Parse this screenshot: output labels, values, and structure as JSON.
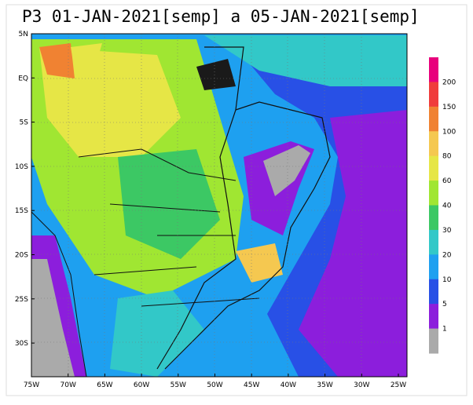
{
  "title": "P3 01-JAN-2021[semp] a 05-JAN-2021[semp]",
  "lat_labels": [
    "5N",
    "EQ",
    "5S",
    "10S",
    "15S",
    "20S",
    "25S",
    "30S"
  ],
  "lon_labels": [
    "75W",
    "70W",
    "65W",
    "60W",
    "55W",
    "50W",
    "45W",
    "40W",
    "35W",
    "30W",
    "25W"
  ],
  "legend": {
    "labels": [
      "200",
      "150",
      "100",
      "80",
      "60",
      "40",
      "30",
      "20",
      "10",
      "5",
      "1"
    ],
    "colors": [
      "#e8007c",
      "#f03c3c",
      "#f08232",
      "#f5c850",
      "#e6e646",
      "#a0e632",
      "#3cc864",
      "#32c8c8",
      "#1ea0f0",
      "#2850e6",
      "#8c1edc",
      "#aaaaaa"
    ]
  }
}
